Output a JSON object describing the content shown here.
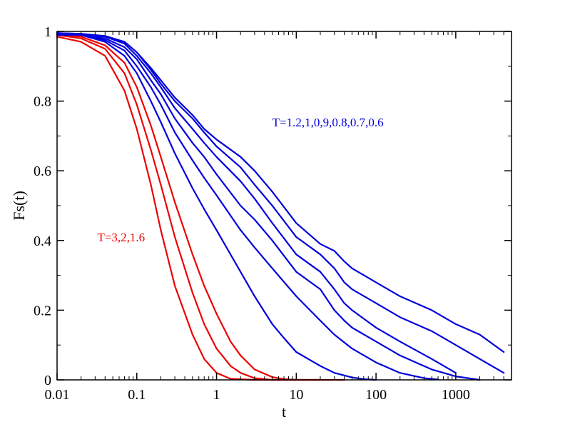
{
  "chart_data": {
    "type": "line",
    "title": "",
    "xlabel": "t",
    "ylabel": "Fs(t)",
    "xscale": "log",
    "xlim": [
      0.01,
      5000
    ],
    "ylim": [
      0,
      1
    ],
    "grid": false,
    "x_ticks": [
      {
        "value": 0.01,
        "label": "0.01"
      },
      {
        "value": 0.1,
        "label": "0.1"
      },
      {
        "value": 1,
        "label": "1"
      },
      {
        "value": 10,
        "label": "10"
      },
      {
        "value": 100,
        "label": "100"
      },
      {
        "value": 1000,
        "label": "1000"
      }
    ],
    "y_ticks": [
      {
        "value": 0,
        "label": "0"
      },
      {
        "value": 0.2,
        "label": "0.2"
      },
      {
        "value": 0.4,
        "label": "0.4"
      },
      {
        "value": 0.6,
        "label": "0.6"
      },
      {
        "value": 0.8,
        "label": "0.8"
      },
      {
        "value": 1,
        "label": "1"
      }
    ],
    "colors": {
      "high_T": "#ee0000",
      "low_T": "#0000dd"
    },
    "annotations": [
      {
        "text": "T=1.2,1,0,9,0.8,0.7,0.6",
        "color": "#0000dd",
        "at_x": 5,
        "at_y": 0.74
      },
      {
        "text": "T=3,2,1.6",
        "color": "#ee0000",
        "at_x": 0.032,
        "at_y": 0.41
      }
    ],
    "series": [
      {
        "name": "T=3",
        "color": "#ee0000",
        "points": [
          [
            0.01,
            0.985
          ],
          [
            0.02,
            0.97
          ],
          [
            0.04,
            0.93
          ],
          [
            0.07,
            0.83
          ],
          [
            0.1,
            0.72
          ],
          [
            0.15,
            0.56
          ],
          [
            0.2,
            0.43
          ],
          [
            0.3,
            0.27
          ],
          [
            0.5,
            0.13
          ],
          [
            0.7,
            0.06
          ],
          [
            1,
            0.02
          ],
          [
            1.5,
            0.003
          ],
          [
            3,
            0
          ],
          [
            10,
            0
          ]
        ]
      },
      {
        "name": "T=2",
        "color": "#ee0000",
        "points": [
          [
            0.01,
            0.99
          ],
          [
            0.02,
            0.98
          ],
          [
            0.04,
            0.95
          ],
          [
            0.07,
            0.88
          ],
          [
            0.1,
            0.79
          ],
          [
            0.15,
            0.66
          ],
          [
            0.2,
            0.56
          ],
          [
            0.3,
            0.41
          ],
          [
            0.5,
            0.25
          ],
          [
            0.7,
            0.16
          ],
          [
            1,
            0.09
          ],
          [
            1.5,
            0.04
          ],
          [
            2,
            0.02
          ],
          [
            3,
            0.005
          ],
          [
            5,
            0
          ],
          [
            20,
            0
          ]
        ]
      },
      {
        "name": "T=1.6",
        "color": "#ee0000",
        "points": [
          [
            0.01,
            0.99
          ],
          [
            0.02,
            0.985
          ],
          [
            0.04,
            0.96
          ],
          [
            0.07,
            0.91
          ],
          [
            0.1,
            0.84
          ],
          [
            0.15,
            0.73
          ],
          [
            0.2,
            0.64
          ],
          [
            0.3,
            0.51
          ],
          [
            0.5,
            0.36
          ],
          [
            0.7,
            0.27
          ],
          [
            1,
            0.19
          ],
          [
            1.5,
            0.11
          ],
          [
            2,
            0.07
          ],
          [
            3,
            0.03
          ],
          [
            5,
            0.008
          ],
          [
            7,
            0.002
          ],
          [
            10,
            0
          ],
          [
            40,
            0
          ]
        ]
      },
      {
        "name": "T=1.2",
        "color": "#0000dd",
        "points": [
          [
            0.01,
            0.99
          ],
          [
            0.02,
            0.99
          ],
          [
            0.04,
            0.97
          ],
          [
            0.07,
            0.93
          ],
          [
            0.1,
            0.88
          ],
          [
            0.15,
            0.8
          ],
          [
            0.2,
            0.74
          ],
          [
            0.3,
            0.65
          ],
          [
            0.5,
            0.55
          ],
          [
            0.7,
            0.49
          ],
          [
            1,
            0.43
          ],
          [
            2,
            0.31
          ],
          [
            3,
            0.24
          ],
          [
            5,
            0.16
          ],
          [
            7,
            0.12
          ],
          [
            10,
            0.08
          ],
          [
            20,
            0.04
          ],
          [
            30,
            0.02
          ],
          [
            50,
            0.007
          ],
          [
            70,
            0.002
          ],
          [
            100,
            0
          ]
        ]
      },
      {
        "name": "T=1",
        "color": "#0000dd",
        "points": [
          [
            0.01,
            0.995
          ],
          [
            0.02,
            0.99
          ],
          [
            0.04,
            0.975
          ],
          [
            0.07,
            0.945
          ],
          [
            0.1,
            0.9
          ],
          [
            0.15,
            0.84
          ],
          [
            0.2,
            0.79
          ],
          [
            0.3,
            0.71
          ],
          [
            0.5,
            0.63
          ],
          [
            0.7,
            0.58
          ],
          [
            1,
            0.53
          ],
          [
            2,
            0.43
          ],
          [
            3,
            0.38
          ],
          [
            5,
            0.32
          ],
          [
            10,
            0.24
          ],
          [
            20,
            0.17
          ],
          [
            30,
            0.13
          ],
          [
            50,
            0.09
          ],
          [
            100,
            0.05
          ],
          [
            200,
            0.02
          ],
          [
            400,
            0.005
          ],
          [
            600,
            0.001
          ]
        ]
      },
      {
        "name": "T=0.9",
        "color": "#0000dd",
        "points": [
          [
            0.01,
            0.995
          ],
          [
            0.02,
            0.99
          ],
          [
            0.04,
            0.98
          ],
          [
            0.07,
            0.955
          ],
          [
            0.1,
            0.92
          ],
          [
            0.15,
            0.86
          ],
          [
            0.2,
            0.82
          ],
          [
            0.3,
            0.75
          ],
          [
            0.5,
            0.68
          ],
          [
            0.7,
            0.64
          ],
          [
            1,
            0.59
          ],
          [
            2,
            0.5
          ],
          [
            3,
            0.46
          ],
          [
            5,
            0.4
          ],
          [
            10,
            0.31
          ],
          [
            20,
            0.26
          ],
          [
            30,
            0.2
          ],
          [
            40,
            0.17
          ],
          [
            50,
            0.15
          ],
          [
            100,
            0.11
          ],
          [
            200,
            0.07
          ],
          [
            500,
            0.03
          ],
          [
            1000,
            0.01
          ],
          [
            2000,
            0
          ]
        ]
      },
      {
        "name": "T=0.8",
        "color": "#0000dd",
        "points": [
          [
            0.01,
            0.995
          ],
          [
            0.02,
            0.992
          ],
          [
            0.04,
            0.985
          ],
          [
            0.07,
            0.965
          ],
          [
            0.1,
            0.93
          ],
          [
            0.15,
            0.88
          ],
          [
            0.2,
            0.84
          ],
          [
            0.3,
            0.78
          ],
          [
            0.5,
            0.72
          ],
          [
            0.7,
            0.68
          ],
          [
            1,
            0.64
          ],
          [
            2,
            0.57
          ],
          [
            3,
            0.52
          ],
          [
            5,
            0.45
          ],
          [
            10,
            0.36
          ],
          [
            20,
            0.31
          ],
          [
            30,
            0.26
          ],
          [
            40,
            0.22
          ],
          [
            50,
            0.2
          ],
          [
            100,
            0.15
          ],
          [
            200,
            0.11
          ],
          [
            500,
            0.06
          ],
          [
            1000,
            0.02
          ]
        ]
      },
      {
        "name": "T=0.7",
        "color": "#0000dd",
        "points": [
          [
            0.01,
            0.995
          ],
          [
            0.02,
            0.993
          ],
          [
            0.04,
            0.985
          ],
          [
            0.07,
            0.97
          ],
          [
            0.1,
            0.94
          ],
          [
            0.15,
            0.89
          ],
          [
            0.2,
            0.85
          ],
          [
            0.3,
            0.8
          ],
          [
            0.5,
            0.75
          ],
          [
            0.7,
            0.71
          ],
          [
            1,
            0.67
          ],
          [
            2,
            0.61
          ],
          [
            3,
            0.56
          ],
          [
            5,
            0.5
          ],
          [
            10,
            0.41
          ],
          [
            20,
            0.36
          ],
          [
            30,
            0.32
          ],
          [
            40,
            0.28
          ],
          [
            50,
            0.26
          ],
          [
            100,
            0.22
          ],
          [
            200,
            0.18
          ],
          [
            500,
            0.14
          ],
          [
            1000,
            0.1
          ],
          [
            2000,
            0.06
          ],
          [
            4000,
            0.02
          ]
        ]
      },
      {
        "name": "T=0.6",
        "color": "#0000dd",
        "points": [
          [
            0.01,
            0.995
          ],
          [
            0.02,
            0.993
          ],
          [
            0.04,
            0.987
          ],
          [
            0.07,
            0.97
          ],
          [
            0.1,
            0.94
          ],
          [
            0.15,
            0.895
          ],
          [
            0.2,
            0.86
          ],
          [
            0.3,
            0.81
          ],
          [
            0.5,
            0.76
          ],
          [
            0.7,
            0.72
          ],
          [
            1,
            0.69
          ],
          [
            2,
            0.64
          ],
          [
            3,
            0.6
          ],
          [
            5,
            0.54
          ],
          [
            10,
            0.45
          ],
          [
            20,
            0.39
          ],
          [
            30,
            0.37
          ],
          [
            40,
            0.34
          ],
          [
            50,
            0.32
          ],
          [
            100,
            0.28
          ],
          [
            200,
            0.24
          ],
          [
            500,
            0.2
          ],
          [
            1000,
            0.16
          ],
          [
            2000,
            0.13
          ],
          [
            4000,
            0.08
          ]
        ]
      }
    ]
  }
}
